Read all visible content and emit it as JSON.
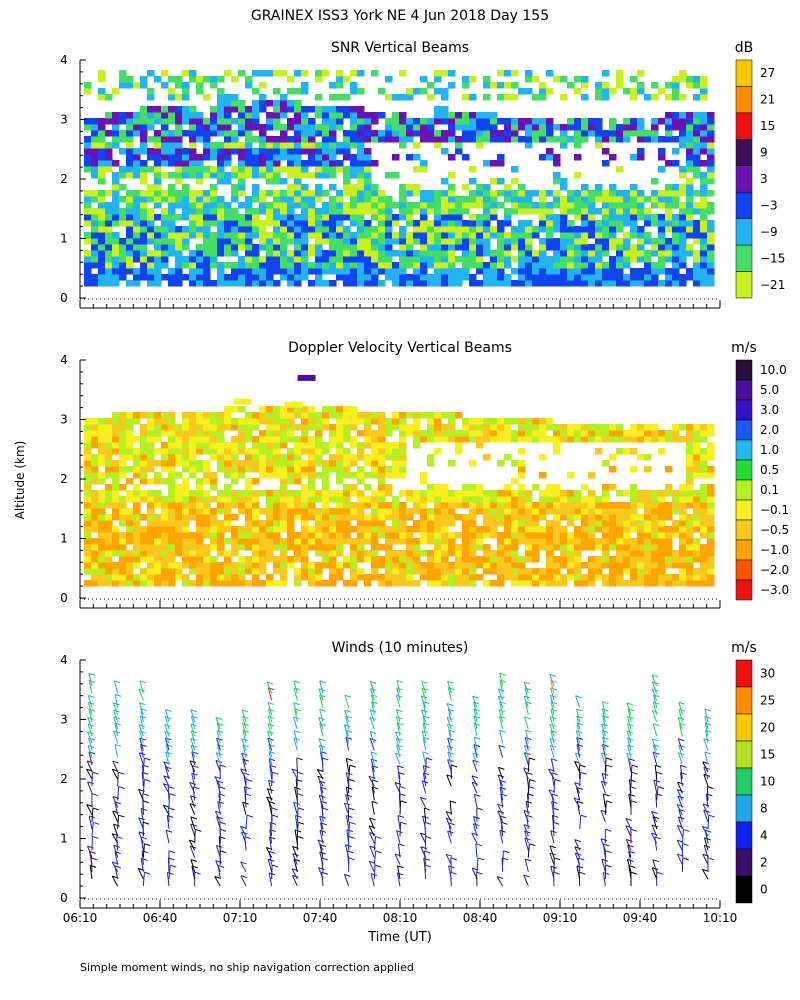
{
  "chart_data": [
    {
      "type": "heatmap",
      "title": "GRAINEX ISS3 York NE   4 Jun 2018 Day 155",
      "subtitle": "SNR Vertical Beams",
      "ylabel": "Altitude (km)",
      "xlabel": "Time (UT)",
      "ylim": [
        0,
        4
      ],
      "yticks": [
        "0",
        "1",
        "2",
        "3",
        "4"
      ],
      "xticks": [
        "06:10",
        "06:40",
        "07:10",
        "07:40",
        "08:10",
        "08:40",
        "09:10",
        "09:40",
        "10:10"
      ],
      "colorbar": {
        "unit": "dB",
        "labels": [
          "27",
          "21",
          "15",
          "9",
          "3",
          "−3",
          "−9",
          "−15",
          "−21"
        ],
        "colors": [
          "#f8c800",
          "#ff8c00",
          "#ee1111",
          "#3b0f5a",
          "#6a12b4",
          "#1144ee",
          "#22b4f0",
          "#44dd66",
          "#c8f020"
        ]
      }
    },
    {
      "type": "heatmap",
      "subtitle": "Doppler Velocity Vertical Beams",
      "ylabel": "Altitude (km)",
      "ylim": [
        0,
        4
      ],
      "yticks": [
        "0",
        "1",
        "2",
        "3",
        "4"
      ],
      "colorbar": {
        "unit": "m/s",
        "labels": [
          "10.0",
          "5.0",
          "3.0",
          "2.0",
          "1.0",
          "0.5",
          "0.1",
          "−0.1",
          "−0.5",
          "−1.0",
          "−2.0",
          "−3.0"
        ],
        "colors": [
          "#2a0e3c",
          "#4b0f9a",
          "#3312c8",
          "#1a5af0",
          "#20b8ee",
          "#22dd33",
          "#b4f024",
          "#f8f01e",
          "#f8c81e",
          "#ffa500",
          "#ff5500",
          "#ee1111"
        ]
      }
    },
    {
      "type": "barbs",
      "subtitle": "Winds (10 minutes)",
      "ylabel": "Altitude (km)",
      "xlabel": "Time (UT)",
      "ylim": [
        0,
        4
      ],
      "yticks": [
        "0",
        "1",
        "2",
        "3",
        "4"
      ],
      "xticks": [
        "06:10",
        "06:40",
        "07:10",
        "07:40",
        "08:10",
        "08:40",
        "09:10",
        "09:40",
        "10:10"
      ],
      "colorbar": {
        "unit": "m/s",
        "labels": [
          "30",
          "25",
          "20",
          "15",
          "10",
          "8",
          "4",
          "2",
          "0"
        ],
        "colors": [
          "#ee1111",
          "#ff8c00",
          "#f8c800",
          "#b4e020",
          "#22cc66",
          "#20a8e8",
          "#1122ee",
          "#3b0f6a",
          "#000000"
        ]
      },
      "footnote": "Simple moment winds, no ship navigation correction applied"
    }
  ]
}
